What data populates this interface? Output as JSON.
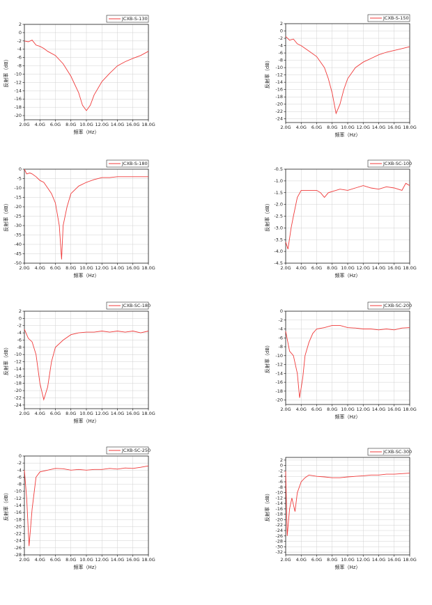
{
  "chart_data": [
    {
      "type": "line",
      "x_label": "频率（Hz）",
      "y_label": "反射率（dB）",
      "grid": true,
      "xlim": [
        2,
        18
      ],
      "xticks": [
        {
          "value": 2,
          "label": "2.0G"
        },
        {
          "value": 4,
          "label": "4.0G"
        },
        {
          "value": 6,
          "label": "6.0G"
        },
        {
          "value": 8,
          "label": "8.0G"
        },
        {
          "value": 10,
          "label": "10.0G"
        },
        {
          "value": 12,
          "label": "12.0G"
        },
        {
          "value": 14,
          "label": "14.0G"
        },
        {
          "value": 16,
          "label": "16.0G"
        },
        {
          "value": 18,
          "label": "18.0G"
        }
      ],
      "ylim": [
        -21,
        2
      ],
      "yticks": [
        2,
        0,
        -2,
        -4,
        -6,
        -8,
        -10,
        -12,
        -14,
        -16,
        -18,
        -20
      ],
      "x": [
        2,
        2.5,
        3,
        3.5,
        4,
        4.5,
        5,
        6,
        7,
        8,
        9,
        9.5,
        10,
        10.5,
        11,
        12,
        13,
        14,
        15,
        16,
        17,
        18
      ],
      "series": [
        {
          "name": "JCXB-S-130",
          "color": "#f03a3a",
          "values": [
            -2,
            -2.2,
            -1.8,
            -3,
            -3.3,
            -3.8,
            -4.5,
            -5.5,
            -7.5,
            -10.5,
            -14.5,
            -17.5,
            -18.8,
            -17.5,
            -15,
            -11.8,
            -9.8,
            -8,
            -7,
            -6.2,
            -5.5,
            -4.5
          ]
        }
      ]
    },
    {
      "type": "line",
      "x_label": "频率（Hz）",
      "y_label": "反射率（dB）",
      "grid": true,
      "xlim": [
        2,
        18
      ],
      "xticks": [
        {
          "value": 2,
          "label": "2.0G"
        },
        {
          "value": 4,
          "label": "4.0G"
        },
        {
          "value": 6,
          "label": "6.0G"
        },
        {
          "value": 8,
          "label": "8.0G"
        },
        {
          "value": 10,
          "label": "10.0G"
        },
        {
          "value": 12,
          "label": "12.0G"
        },
        {
          "value": 14,
          "label": "14.0G"
        },
        {
          "value": 16,
          "label": "16.0G"
        },
        {
          "value": 18,
          "label": "18.0G"
        }
      ],
      "ylim": [
        -25,
        2
      ],
      "yticks": [
        2,
        0,
        -2,
        -4,
        -6,
        -8,
        -10,
        -12,
        -14,
        -16,
        -18,
        -20,
        -22,
        -24
      ],
      "x": [
        2,
        2.5,
        3,
        3.5,
        4,
        5,
        6,
        7,
        7.5,
        8,
        8.5,
        9,
        9.5,
        10,
        11,
        12,
        13,
        14,
        15,
        16,
        17,
        18
      ],
      "series": [
        {
          "name": "JCXB-S-150",
          "color": "#f03a3a",
          "values": [
            -1.5,
            -2.5,
            -2.2,
            -3.5,
            -4,
            -5.5,
            -7,
            -10,
            -13,
            -17,
            -22.5,
            -20,
            -16,
            -13,
            -10,
            -8.5,
            -7.5,
            -6.5,
            -5.8,
            -5.3,
            -4.8,
            -4.3
          ]
        }
      ]
    },
    {
      "type": "line",
      "x_label": "频率（Hz）",
      "y_label": "反射率（dB）",
      "grid": true,
      "xlim": [
        2,
        18
      ],
      "xticks": [
        {
          "value": 2,
          "label": "2.0G"
        },
        {
          "value": 4,
          "label": "4.0G"
        },
        {
          "value": 6,
          "label": "6.0G"
        },
        {
          "value": 8,
          "label": "8.0G"
        },
        {
          "value": 10,
          "label": "10.0G"
        },
        {
          "value": 12,
          "label": "12.0G"
        },
        {
          "value": 14,
          "label": "14.0G"
        },
        {
          "value": 16,
          "label": "16.0G"
        },
        {
          "value": 18,
          "label": "18.0G"
        }
      ],
      "ylim": [
        -50,
        0
      ],
      "yticks": [
        0,
        -5,
        -10,
        -15,
        -20,
        -25,
        -30,
        -35,
        -40,
        -45,
        -50
      ],
      "x": [
        2,
        2.3,
        2.7,
        3,
        3.5,
        4,
        4.5,
        5,
        5.5,
        6,
        6.5,
        6.8,
        7,
        7.5,
        8,
        9,
        10,
        11,
        12,
        13,
        14,
        15,
        16,
        17,
        18
      ],
      "series": [
        {
          "name": "JCXB-S-180",
          "color": "#f03a3a",
          "values": [
            0,
            -2.5,
            -2,
            -2.5,
            -4,
            -6,
            -7,
            -10,
            -13,
            -18,
            -30,
            -48,
            -30,
            -20,
            -13,
            -9,
            -7,
            -5.5,
            -4.5,
            -4.5,
            -4,
            -4,
            -4,
            -4,
            -4
          ]
        }
      ]
    },
    {
      "type": "line",
      "x_label": "频率（Hz）",
      "y_label": "反射率（dB）",
      "grid": true,
      "xlim": [
        2,
        18
      ],
      "xticks": [
        {
          "value": 2,
          "label": "2.0G"
        },
        {
          "value": 4,
          "label": "4.0G"
        },
        {
          "value": 6,
          "label": "6.0G"
        },
        {
          "value": 8,
          "label": "8.0G"
        },
        {
          "value": 10,
          "label": "10.0G"
        },
        {
          "value": 12,
          "label": "12.0G"
        },
        {
          "value": 14,
          "label": "14.0G"
        },
        {
          "value": 16,
          "label": "16.0G"
        },
        {
          "value": 18,
          "label": "18.0G"
        }
      ],
      "ylim": [
        -4.5,
        -0.5
      ],
      "yticks": [
        -0.5,
        {
          "value": -1,
          "label": "-1.0"
        },
        -1.5,
        {
          "value": -2,
          "label": "-2.0"
        },
        -2.5,
        {
          "value": -3,
          "label": "-3.0"
        },
        -3.5,
        {
          "value": -4,
          "label": "-4.0"
        },
        -4.5
      ],
      "x": [
        2,
        2.3,
        2.7,
        3,
        3.5,
        4,
        5,
        6,
        6.5,
        7,
        7.5,
        8,
        9,
        10,
        11,
        12,
        13,
        14,
        15,
        16,
        17,
        17.5,
        18
      ],
      "series": [
        {
          "name": "JCXB-SC-100",
          "color": "#f03a3a",
          "values": [
            -3.6,
            -3.9,
            -3,
            -2.5,
            -1.7,
            -1.4,
            -1.4,
            -1.4,
            -1.5,
            -1.7,
            -1.5,
            -1.45,
            -1.35,
            -1.4,
            -1.3,
            -1.2,
            -1.3,
            -1.35,
            -1.25,
            -1.3,
            -1.4,
            -1.1,
            -1.2
          ]
        }
      ]
    },
    {
      "type": "line",
      "x_label": "频率（Hz）",
      "y_label": "反射率（dB）",
      "grid": true,
      "xlim": [
        2,
        18
      ],
      "xticks": [
        {
          "value": 2,
          "label": "2.0G"
        },
        {
          "value": 4,
          "label": "4.0G"
        },
        {
          "value": 6,
          "label": "6.0G"
        },
        {
          "value": 8,
          "label": "8.0G"
        },
        {
          "value": 10,
          "label": "10.0G"
        },
        {
          "value": 12,
          "label": "12.0G"
        },
        {
          "value": 14,
          "label": "14.0G"
        },
        {
          "value": 16,
          "label": "16.0G"
        },
        {
          "value": 18,
          "label": "18.0G"
        }
      ],
      "ylim": [
        -25,
        2
      ],
      "yticks": [
        2,
        0,
        -2,
        -4,
        -6,
        -8,
        -10,
        -12,
        -14,
        -16,
        -18,
        -20,
        -22,
        -24
      ],
      "x": [
        2,
        2.5,
        3,
        3.5,
        4,
        4.5,
        5,
        5.5,
        6,
        7,
        8,
        9,
        10,
        11,
        12,
        13,
        14,
        15,
        16,
        17,
        18
      ],
      "series": [
        {
          "name": "JCXB-SC-180",
          "color": "#f03a3a",
          "values": [
            -3,
            -5.5,
            -6.5,
            -10,
            -18,
            -22.5,
            -19,
            -12,
            -8,
            -6,
            -4.5,
            -4,
            -3.8,
            -3.8,
            -3.5,
            -3.8,
            -3.5,
            -3.8,
            -3.5,
            -4,
            -3.5
          ]
        }
      ]
    },
    {
      "type": "line",
      "x_label": "频率（Hz）",
      "y_label": "反射率（dB）",
      "grid": true,
      "xlim": [
        2,
        18
      ],
      "xticks": [
        {
          "value": 2,
          "label": "2.0G"
        },
        {
          "value": 4,
          "label": "4.0G"
        },
        {
          "value": 6,
          "label": "6.0G"
        },
        {
          "value": 8,
          "label": "8.0G"
        },
        {
          "value": 10,
          "label": "10.0G"
        },
        {
          "value": 12,
          "label": "12.0G"
        },
        {
          "value": 14,
          "label": "14.0G"
        },
        {
          "value": 16,
          "label": "16.0G"
        },
        {
          "value": 18,
          "label": "18.0G"
        }
      ],
      "ylim": [
        -21,
        0
      ],
      "yticks": [
        0,
        -2,
        -4,
        -6,
        -8,
        -10,
        -12,
        -14,
        -16,
        -18,
        -20
      ],
      "x": [
        2,
        2.5,
        3,
        3.5,
        3.8,
        4.2,
        4.5,
        5,
        5.5,
        6,
        7,
        8,
        9,
        10,
        11,
        12,
        13,
        14,
        15,
        16,
        17,
        18
      ],
      "series": [
        {
          "name": "JCXB-SC-200",
          "color": "#f03a3a",
          "values": [
            -4.5,
            -9,
            -10,
            -14,
            -19.5,
            -15,
            -10,
            -7,
            -5,
            -4,
            -3.7,
            -3.2,
            -3.2,
            -3.7,
            -3.8,
            -4,
            -4,
            -4.2,
            -4,
            -4.2,
            -3.8,
            -3.7
          ]
        }
      ]
    },
    {
      "type": "line",
      "x_label": "频率（Hz）",
      "y_label": "反射率（dB）",
      "grid": true,
      "xlim": [
        2,
        18
      ],
      "xticks": [
        {
          "value": 2,
          "label": "2.0G"
        },
        {
          "value": 4,
          "label": "4.0G"
        },
        {
          "value": 6,
          "label": "6.0G"
        },
        {
          "value": 8,
          "label": "8.0G"
        },
        {
          "value": 10,
          "label": "10.0G"
        },
        {
          "value": 12,
          "label": "12.0G"
        },
        {
          "value": 14,
          "label": "14.0G"
        },
        {
          "value": 16,
          "label": "16.0G"
        },
        {
          "value": 18,
          "label": "18.0G"
        }
      ],
      "ylim": [
        -28,
        0
      ],
      "yticks": [
        0,
        -2,
        -4,
        -6,
        -8,
        -10,
        -12,
        -14,
        -16,
        -18,
        -20,
        -22,
        -24,
        -26,
        -28
      ],
      "x": [
        2,
        2.3,
        2.6,
        3,
        3.5,
        4,
        5,
        6,
        7,
        8,
        9,
        10,
        11,
        12,
        13,
        14,
        15,
        16,
        17,
        18
      ],
      "series": [
        {
          "name": "JCXB-SC-250",
          "color": "#f03a3a",
          "values": [
            -4,
            -12,
            -25.5,
            -15,
            -6,
            -4.5,
            -4,
            -3.5,
            -3.6,
            -4,
            -3.8,
            -4,
            -3.8,
            -3.8,
            -3.5,
            -3.7,
            -3.4,
            -3.5,
            -3.2,
            -2.8
          ]
        }
      ]
    },
    {
      "type": "line",
      "x_label": "频率（Hz）",
      "y_label": "反射率（dB）",
      "grid": true,
      "xlim": [
        2,
        18
      ],
      "xticks": [
        {
          "value": 2,
          "label": "2.0G"
        },
        {
          "value": 4,
          "label": "4.0G"
        },
        {
          "value": 6,
          "label": "6.0G"
        },
        {
          "value": 8,
          "label": "8.0G"
        },
        {
          "value": 10,
          "label": "10.0G"
        },
        {
          "value": 12,
          "label": "12.0G"
        },
        {
          "value": 14,
          "label": "14.0G"
        },
        {
          "value": 16,
          "label": "16.0G"
        },
        {
          "value": 18,
          "label": "18.0G"
        }
      ],
      "ylim": [
        -33,
        3
      ],
      "yticks": [
        2,
        0,
        -2,
        -4,
        -6,
        -8,
        -10,
        -12,
        -14,
        -16,
        -18,
        -20,
        -22,
        -24,
        -26,
        -28,
        -30,
        -32
      ],
      "x": [
        2,
        2.2,
        2.5,
        2.8,
        3.2,
        3.5,
        4,
        4.5,
        5,
        6,
        7,
        8,
        9,
        10,
        11,
        12,
        13,
        14,
        15,
        16,
        17,
        18
      ],
      "series": [
        {
          "name": "JCXB-SC-300",
          "color": "#f03a3a",
          "values": [
            -2,
            -26,
            -16,
            -12,
            -17,
            -10,
            -6,
            -4.5,
            -3.5,
            -4,
            -4.2,
            -4.5,
            -4.5,
            -4.2,
            -4,
            -3.8,
            -3.5,
            -3.5,
            -3.2,
            -3.2,
            -3,
            -2.8
          ]
        }
      ]
    }
  ]
}
